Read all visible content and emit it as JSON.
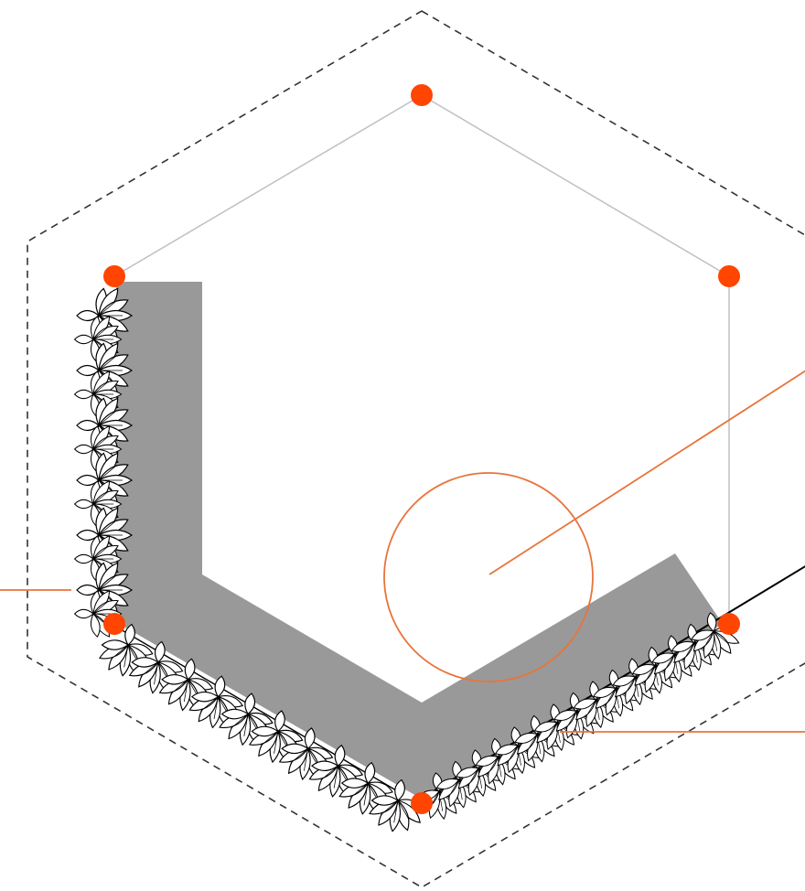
{
  "colors": {
    "vertex_dot": "#ff4500",
    "callout": "#e8743b",
    "guide": "#c0c0c0",
    "boundary": "#333333",
    "wall": "#999999",
    "plant_stroke": "#000000"
  },
  "icons": [
    "vertex-dot-icon",
    "plant-symbol-icon"
  ]
}
